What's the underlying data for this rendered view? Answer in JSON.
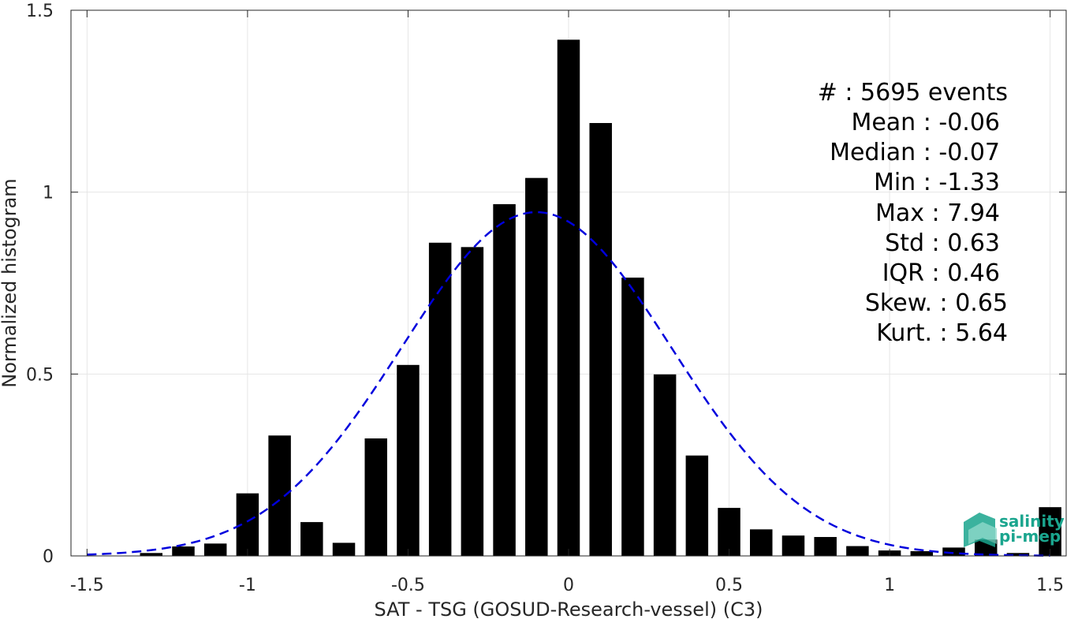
{
  "chart_data": {
    "type": "bar",
    "xlabel": "SAT - TSG (GOSUD-Research-vessel) (C3)",
    "ylabel": "Normalized histogram",
    "xlim": [
      -1.55,
      1.55
    ],
    "ylim": [
      0,
      1.5
    ],
    "grid": true,
    "x_ticks": [
      {
        "value": -1.5,
        "label": "-1.5"
      },
      {
        "value": -1.0,
        "label": "-1"
      },
      {
        "value": -0.5,
        "label": "-0.5"
      },
      {
        "value": 0,
        "label": "0"
      },
      {
        "value": 0.5,
        "label": "0.5"
      },
      {
        "value": 1.0,
        "label": "1"
      },
      {
        "value": 1.5,
        "label": "1.5"
      }
    ],
    "y_ticks": [
      {
        "value": 0,
        "label": "0"
      },
      {
        "value": 0.5,
        "label": "0.5"
      },
      {
        "value": 1.0,
        "label": "1"
      },
      {
        "value": 1.5,
        "label": "1.5"
      }
    ],
    "bar_width": 0.07,
    "bars": [
      {
        "x": -1.3,
        "y": 0.008
      },
      {
        "x": -1.2,
        "y": 0.026
      },
      {
        "x": -1.1,
        "y": 0.034
      },
      {
        "x": -1.0,
        "y": 0.172
      },
      {
        "x": -0.9,
        "y": 0.331
      },
      {
        "x": -0.8,
        "y": 0.093
      },
      {
        "x": -0.7,
        "y": 0.036
      },
      {
        "x": -0.6,
        "y": 0.323
      },
      {
        "x": -0.5,
        "y": 0.525
      },
      {
        "x": -0.4,
        "y": 0.861
      },
      {
        "x": -0.3,
        "y": 0.849
      },
      {
        "x": -0.2,
        "y": 0.967
      },
      {
        "x": -0.1,
        "y": 1.039
      },
      {
        "x": 0.0,
        "y": 1.419
      },
      {
        "x": 0.1,
        "y": 1.19
      },
      {
        "x": 0.2,
        "y": 0.765
      },
      {
        "x": 0.3,
        "y": 0.499
      },
      {
        "x": 0.4,
        "y": 0.276
      },
      {
        "x": 0.5,
        "y": 0.132
      },
      {
        "x": 0.6,
        "y": 0.073
      },
      {
        "x": 0.7,
        "y": 0.056
      },
      {
        "x": 0.8,
        "y": 0.052
      },
      {
        "x": 0.9,
        "y": 0.027
      },
      {
        "x": 1.0,
        "y": 0.015
      },
      {
        "x": 1.1,
        "y": 0.013
      },
      {
        "x": 1.2,
        "y": 0.023
      },
      {
        "x": 1.3,
        "y": 0.045
      },
      {
        "x": 1.4,
        "y": 0.008
      },
      {
        "x": 1.5,
        "y": 0.134
      }
    ],
    "fit_curve": {
      "style": "dashed",
      "color": "#0000dd",
      "x_start": -1.5,
      "x_end": 1.5,
      "peak_x": -0.1,
      "peak_y": 0.945,
      "sigma": 0.42
    },
    "stats": {
      "count": "#  : 5695 events",
      "mean": "Mean : -0.06",
      "median": "Median : -0.07",
      "min": "Min : -1.33",
      "max": "Max : 7.94",
      "std": "Std : 0.63",
      "iqr": "IQR : 0.46",
      "skew": "Skew. : 0.65",
      "kurt": "Kurt. : 5.64"
    }
  },
  "logo": {
    "line1": "salinity",
    "line2": "pi-mep",
    "color": "#1aa58e"
  }
}
